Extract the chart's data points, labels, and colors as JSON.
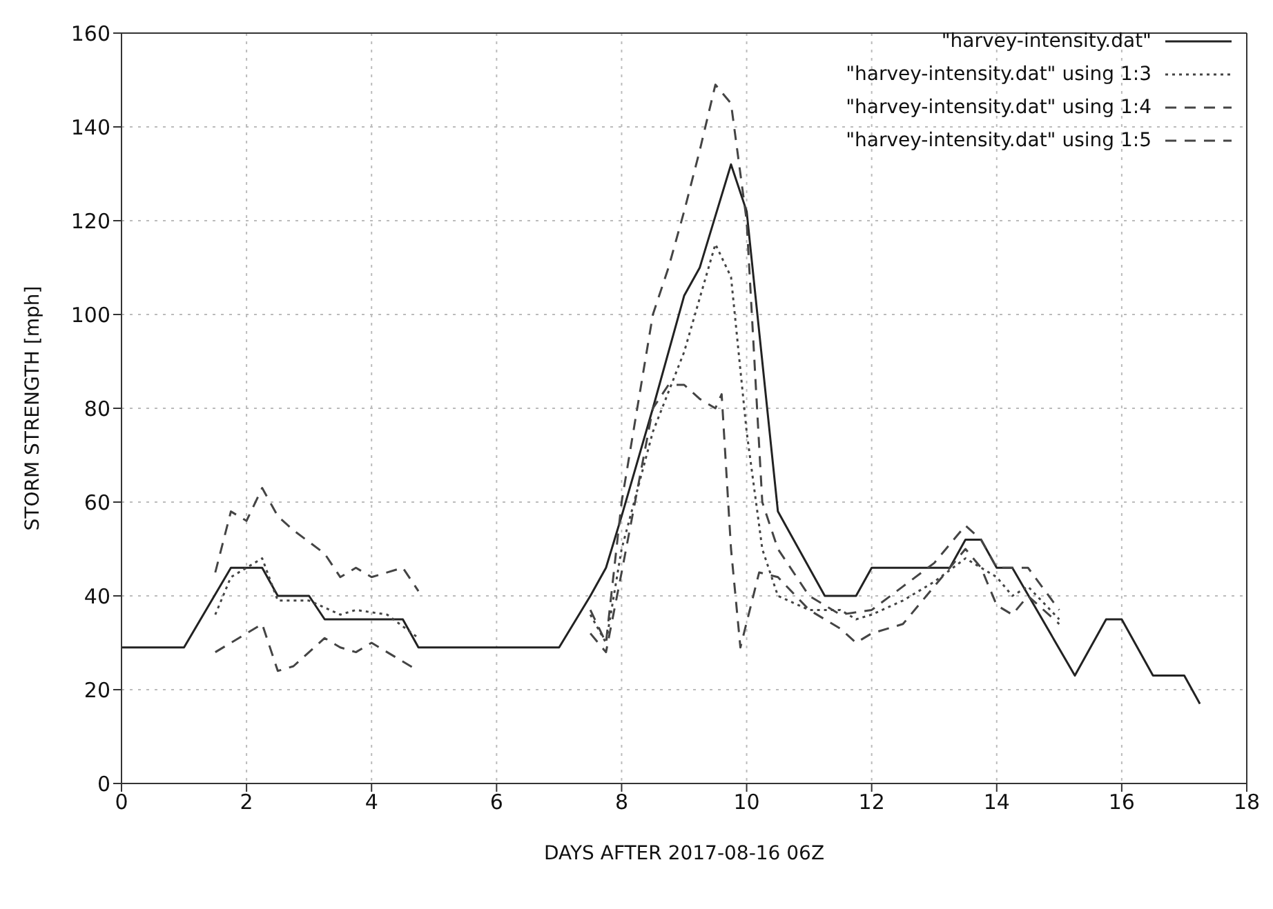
{
  "chart_data": {
    "type": "line",
    "xlabel": "DAYS AFTER 2017-08-16 06Z",
    "ylabel": "STORM STRENGTH [mph]",
    "xlim": [
      0,
      18
    ],
    "xticks": [
      0,
      2,
      4,
      6,
      8,
      10,
      12,
      14,
      16,
      18
    ],
    "ylim": [
      0,
      160
    ],
    "yticks": [
      0,
      20,
      40,
      60,
      80,
      100,
      120,
      140,
      160
    ],
    "grid": true,
    "legend": "top right",
    "marker": "none",
    "series": [
      {
        "name": "\"harvey-intensity.dat\"",
        "color": "#222222",
        "line_style": "solid",
        "x": [
          0,
          1,
          1.75,
          2.25,
          2.5,
          3,
          3.25,
          4.5,
          4.75,
          7,
          7.5,
          7.75,
          8,
          8.5,
          9,
          9.25,
          9.75,
          10,
          10.5,
          11.25,
          11.75,
          12,
          13.25,
          13.5,
          13.75,
          14,
          14.25,
          15.25,
          15.75,
          16,
          16.5,
          17,
          17.25
        ],
        "values": [
          29,
          29,
          46,
          46,
          40,
          40,
          35,
          35,
          29,
          29,
          40,
          46,
          57,
          80,
          104,
          110,
          132,
          122,
          58,
          40,
          40,
          46,
          46,
          52,
          52,
          46,
          46,
          23,
          35,
          35,
          23,
          23,
          17
        ]
      },
      {
        "name": "\"harvey-intensity.dat\" using 1:3",
        "color": "#444444",
        "line_style": "dotted",
        "x": [
          1.5,
          1.75,
          2.25,
          2.5,
          3,
          3.5,
          3.75,
          4.25,
          4.75,
          null,
          7.5,
          7.75,
          8,
          8.5,
          9,
          9.5,
          9.75,
          10,
          10.25,
          10.5,
          11,
          11.5,
          11.75,
          12,
          12.5,
          13,
          13.5,
          14,
          14.25,
          14.5,
          15
        ],
        "values": [
          36,
          44,
          48,
          39,
          39,
          36,
          37,
          36,
          31,
          null,
          36,
          30,
          50,
          75,
          92,
          115,
          108,
          75,
          50,
          40,
          37,
          37,
          35,
          36,
          39,
          43,
          48,
          44,
          40,
          42,
          35
        ]
      },
      {
        "name": "\"harvey-intensity.dat\" using 1:4",
        "color": "#444444",
        "line_style": "dashed",
        "x": [
          1.5,
          2,
          2.25,
          2.5,
          2.75,
          3.25,
          3.5,
          3.75,
          4,
          4.25,
          4.75,
          null,
          7.5,
          7.75,
          8,
          8.5,
          8.75,
          9,
          9.25,
          9.5,
          9.6,
          9.75,
          9.9,
          10.2,
          10.5,
          11,
          11.5,
          11.75,
          12,
          12.5,
          12.75,
          13,
          13.5,
          13.75,
          14,
          14.25,
          14.5,
          15
        ],
        "values": [
          28,
          32,
          34,
          24,
          25,
          31,
          29,
          28,
          30,
          28,
          24,
          null,
          32,
          28,
          45,
          80,
          85,
          85,
          82,
          80,
          83,
          50,
          29,
          45,
          44,
          37,
          33,
          30,
          32,
          34,
          38,
          42,
          50,
          46,
          38,
          36,
          40,
          34
        ]
      },
      {
        "name": "\"harvey-intensity.dat\" using 1:5",
        "color": "#444444",
        "line_style": "dashed",
        "x": [
          1.5,
          1.75,
          2,
          2.25,
          2.5,
          2.75,
          3.25,
          3.5,
          3.75,
          4,
          4.5,
          4.75,
          null,
          7.5,
          7.75,
          8,
          8.5,
          8.75,
          9,
          9.25,
          9.5,
          9.75,
          10,
          10.25,
          10.5,
          11,
          11.5,
          12,
          12.5,
          13,
          13.5,
          13.75,
          14,
          14.5,
          15
        ],
        "values": [
          45,
          58,
          56,
          63,
          57,
          54,
          49,
          44,
          46,
          44,
          46,
          41,
          null,
          37,
          30,
          60,
          100,
          110,
          122,
          135,
          149,
          145,
          120,
          60,
          50,
          40,
          36,
          37,
          42,
          47,
          55,
          52,
          46,
          46,
          37
        ]
      }
    ]
  }
}
